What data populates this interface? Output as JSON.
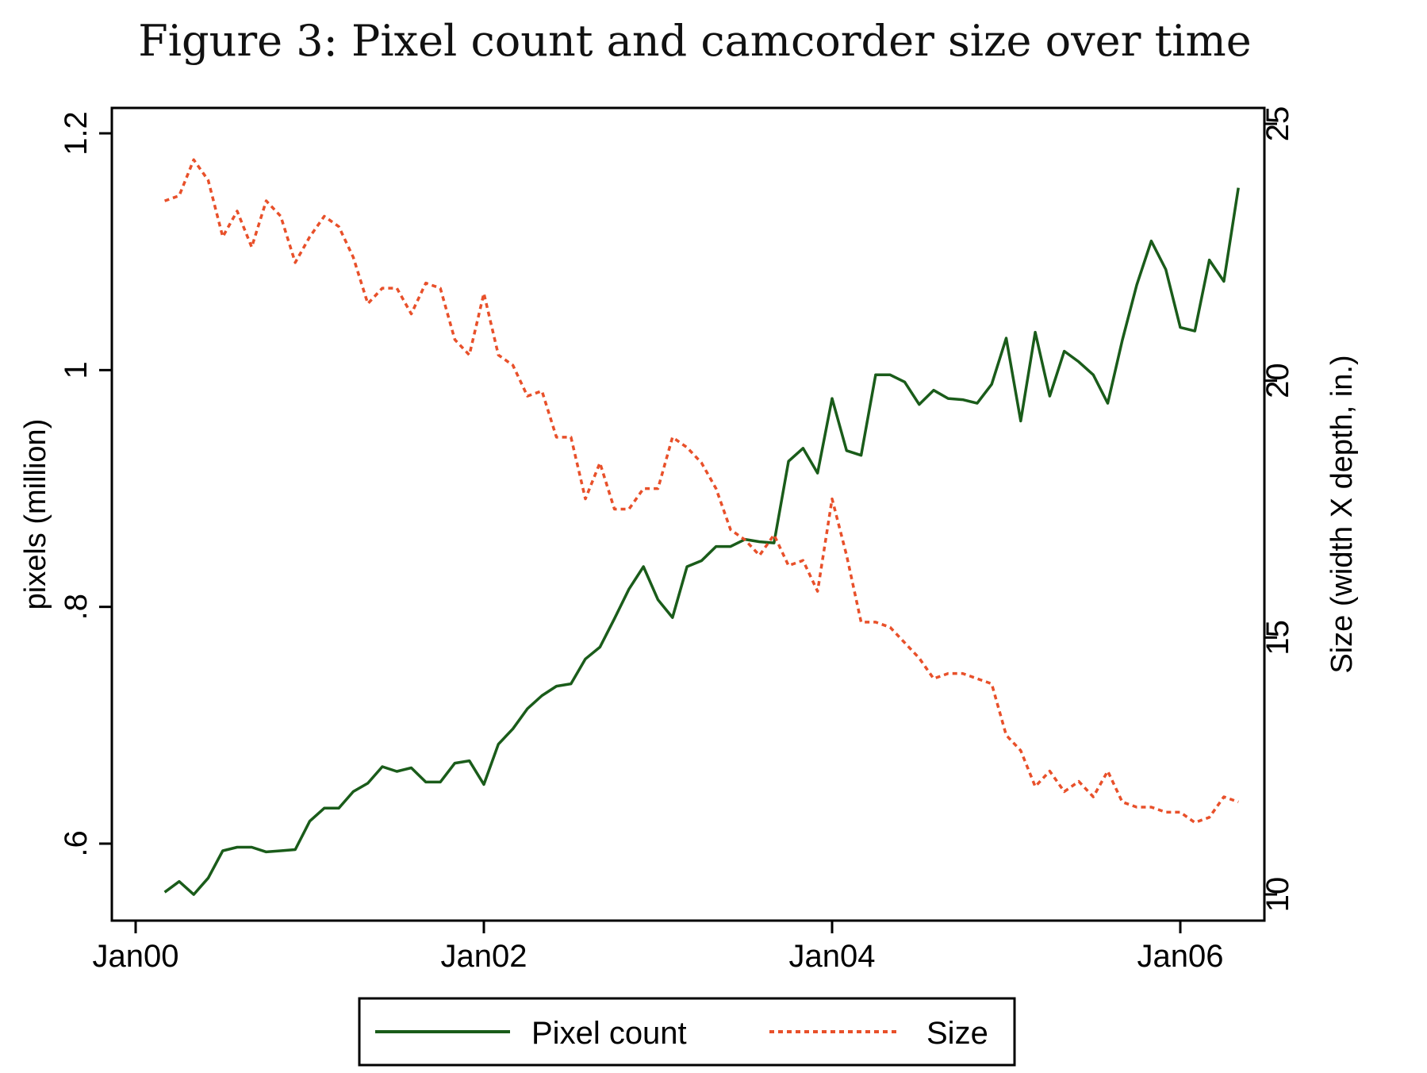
{
  "chart_data": {
    "type": "line",
    "title": "Figure 3: Pixel count and camcorder size over time",
    "xlabel": "",
    "ylabel_left": "pixels (million)",
    "ylabel_right": "Size (width X depth, in.)",
    "x_ticks": [
      "Jan00",
      "Jan02",
      "Jan04",
      "Jan06"
    ],
    "x_tick_dates": [
      "2000-01",
      "2002-01",
      "2004-01",
      "2006-01"
    ],
    "y_left_ticks": [
      ".6",
      ".8",
      "1",
      "1.2"
    ],
    "y_left_tick_values": [
      0.6,
      0.8,
      1.0,
      1.2
    ],
    "y_left_lim": [
      0.56,
      1.22
    ],
    "y_right_ticks": [
      "10",
      "15",
      "20",
      "25"
    ],
    "y_right_tick_values": [
      10,
      15,
      20,
      25
    ],
    "y_right_lim": [
      9.5,
      25.5
    ],
    "grid": false,
    "legend_position": "bottom",
    "x": [
      "2000-03",
      "2000-04",
      "2000-05",
      "2000-06",
      "2000-07",
      "2000-08",
      "2000-09",
      "2000-10",
      "2000-11",
      "2000-12",
      "2001-01",
      "2001-02",
      "2001-03",
      "2001-04",
      "2001-05",
      "2001-06",
      "2001-07",
      "2001-08",
      "2001-09",
      "2001-10",
      "2001-11",
      "2001-12",
      "2002-01",
      "2002-02",
      "2002-03",
      "2002-04",
      "2002-05",
      "2002-06",
      "2002-07",
      "2002-08",
      "2002-09",
      "2002-10",
      "2002-11",
      "2002-12",
      "2003-01",
      "2003-02",
      "2003-03",
      "2003-04",
      "2003-05",
      "2003-06",
      "2003-07",
      "2003-08",
      "2003-09",
      "2003-10",
      "2003-11",
      "2003-12",
      "2004-01",
      "2004-02",
      "2004-03",
      "2004-04",
      "2004-05",
      "2004-06",
      "2004-07",
      "2004-08",
      "2004-09",
      "2004-10",
      "2004-11",
      "2004-12",
      "2005-01",
      "2005-02",
      "2005-03",
      "2005-04",
      "2005-05",
      "2005-06",
      "2005-07",
      "2005-08",
      "2005-09",
      "2005-10",
      "2005-11",
      "2005-12",
      "2006-01",
      "2006-02",
      "2006-03",
      "2006-04",
      "2006-05"
    ],
    "series": [
      {
        "name": "Pixel count",
        "axis": "left",
        "color": "#1a5c1a",
        "dash": "solid",
        "values": [
          0.559,
          0.568,
          0.557,
          0.571,
          0.594,
          0.597,
          0.597,
          0.593,
          0.594,
          0.595,
          0.619,
          0.63,
          0.63,
          0.644,
          0.651,
          0.665,
          0.661,
          0.664,
          0.652,
          0.652,
          0.668,
          0.67,
          0.65,
          0.684,
          0.697,
          0.714,
          0.725,
          0.733,
          0.735,
          0.756,
          0.766,
          0.79,
          0.815,
          0.834,
          0.806,
          0.791,
          0.834,
          0.839,
          0.851,
          0.851,
          0.857,
          0.855,
          0.854,
          0.923,
          0.934,
          0.913,
          0.976,
          0.932,
          0.928,
          0.996,
          0.996,
          0.99,
          0.971,
          0.983,
          0.976,
          0.975,
          0.972,
          0.988,
          1.027,
          0.957,
          1.032,
          0.978,
          1.016,
          1.007,
          0.996,
          0.972,
          1.025,
          1.072,
          1.109,
          1.085,
          1.036,
          1.033,
          1.093,
          1.075,
          1.154
        ]
      },
      {
        "name": "Size",
        "axis": "right",
        "color": "#e8502a",
        "dash": "dotted",
        "values": [
          23.5,
          23.6,
          24.3,
          23.9,
          22.8,
          23.3,
          22.6,
          23.5,
          23.2,
          22.3,
          22.8,
          23.2,
          23.0,
          22.4,
          21.5,
          21.8,
          21.8,
          21.3,
          21.9,
          21.8,
          20.8,
          20.5,
          21.7,
          20.5,
          20.3,
          19.7,
          19.8,
          18.9,
          18.9,
          17.7,
          18.4,
          17.5,
          17.5,
          17.9,
          17.9,
          18.9,
          18.7,
          18.4,
          17.9,
          17.1,
          16.9,
          16.6,
          17.0,
          16.4,
          16.5,
          15.9,
          17.7,
          16.6,
          15.3,
          15.3,
          15.2,
          14.9,
          14.6,
          14.2,
          14.3,
          14.3,
          14.2,
          14.1,
          13.1,
          12.8,
          12.1,
          12.4,
          12.0,
          12.2,
          11.9,
          12.4,
          11.8,
          11.7,
          11.7,
          11.6,
          11.6,
          11.4,
          11.5,
          11.9,
          11.8
        ]
      }
    ]
  }
}
